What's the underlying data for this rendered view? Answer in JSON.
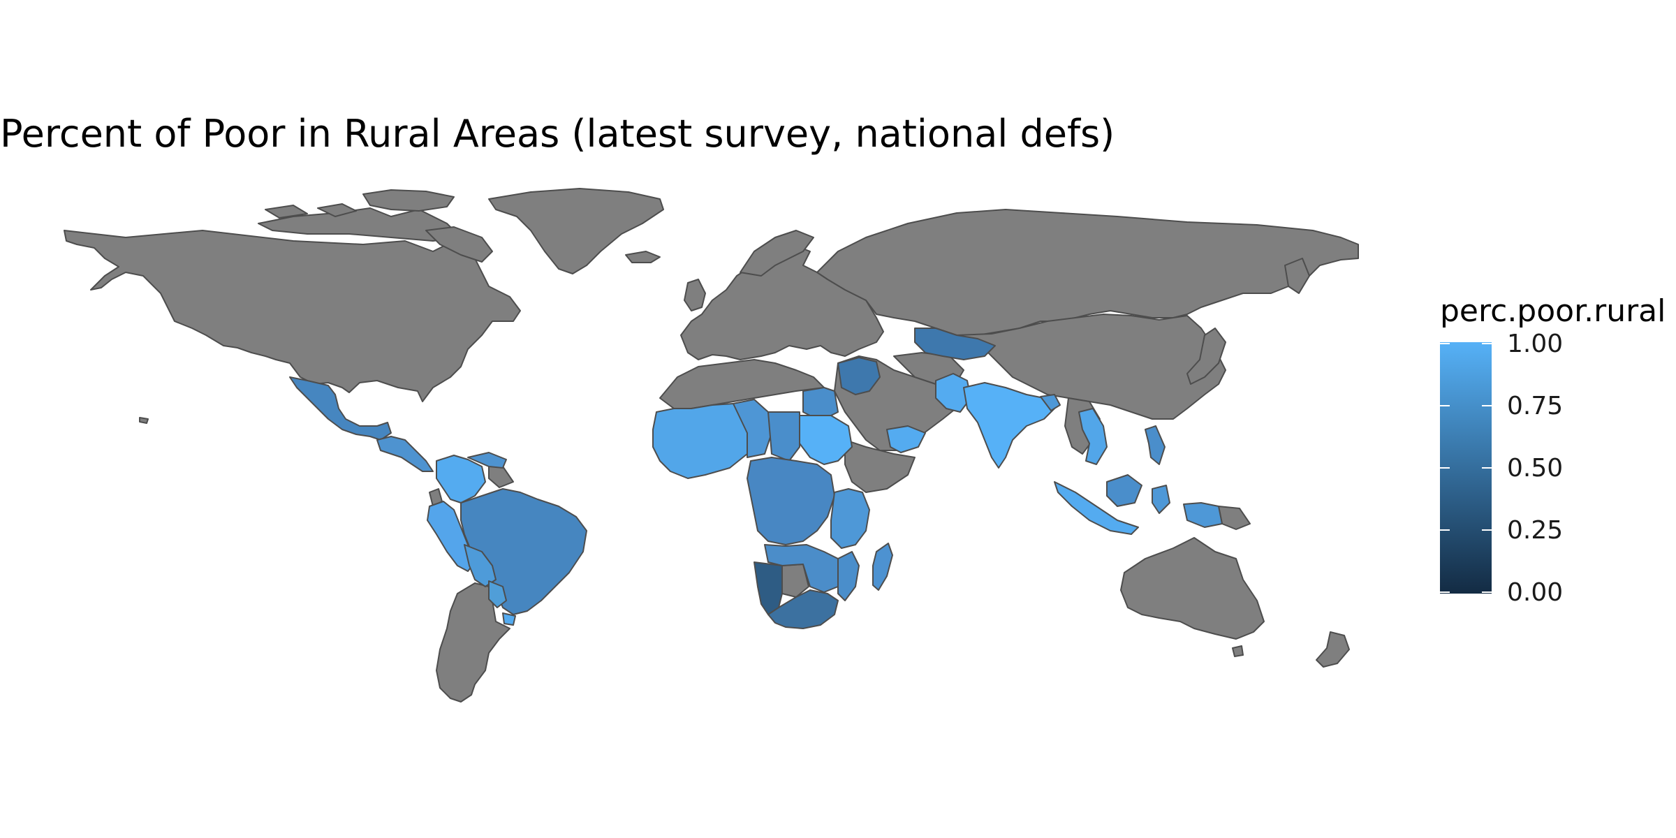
{
  "title": "Percent of Poor in Rural Areas (latest survey, national defs)",
  "legend": {
    "title": "perc.poor.rural",
    "ticks": [
      {
        "value": 1.0,
        "label": "1.00"
      },
      {
        "value": 0.75,
        "label": "0.75"
      },
      {
        "value": 0.5,
        "label": "0.50"
      },
      {
        "value": 0.25,
        "label": "0.25"
      },
      {
        "value": 0.0,
        "label": "0.00"
      }
    ],
    "color_low": "#132B43",
    "color_high": "#56B1F7"
  },
  "colors": {
    "no_data": "#7f7f7f",
    "border": "#4d4d4d",
    "background": "#ffffff"
  },
  "chart_data": {
    "type": "choropleth",
    "variable": "perc.poor.rural",
    "scale_range": [
      0,
      1
    ],
    "regions": [
      {
        "name": "Mexico",
        "value": 0.62
      },
      {
        "name": "Central America",
        "value": 0.7
      },
      {
        "name": "Colombia",
        "value": 0.95
      },
      {
        "name": "Brazil",
        "value": 0.66
      },
      {
        "name": "Peru",
        "value": 0.92
      },
      {
        "name": "Bolivia",
        "value": 0.82
      },
      {
        "name": "Paraguay",
        "value": 0.85
      },
      {
        "name": "Uruguay",
        "value": 0.95
      },
      {
        "name": "Egypt",
        "value": 0.72
      },
      {
        "name": "Sudan",
        "value": 0.95
      },
      {
        "name": "Yemen",
        "value": 0.92
      },
      {
        "name": "Iraq",
        "value": 0.48
      },
      {
        "name": "West Africa",
        "value": 0.9
      },
      {
        "name": "Central Africa",
        "value": 0.68
      },
      {
        "name": "East Africa",
        "value": 0.72
      },
      {
        "name": "Southern Africa",
        "value": 0.72
      },
      {
        "name": "Namibia",
        "value": 0.35
      },
      {
        "name": "South Africa",
        "value": 0.55
      },
      {
        "name": "Madagascar",
        "value": 0.78
      },
      {
        "name": "Central Asia",
        "value": 0.55
      },
      {
        "name": "India",
        "value": 0.92
      },
      {
        "name": "Pakistan",
        "value": 0.9
      },
      {
        "name": "Vietnam",
        "value": 0.88
      },
      {
        "name": "Indonesia",
        "value": 0.9
      },
      {
        "name": "Philippines",
        "value": 0.72
      },
      {
        "name": "Papua New Guinea",
        "value": 0.8
      }
    ]
  }
}
